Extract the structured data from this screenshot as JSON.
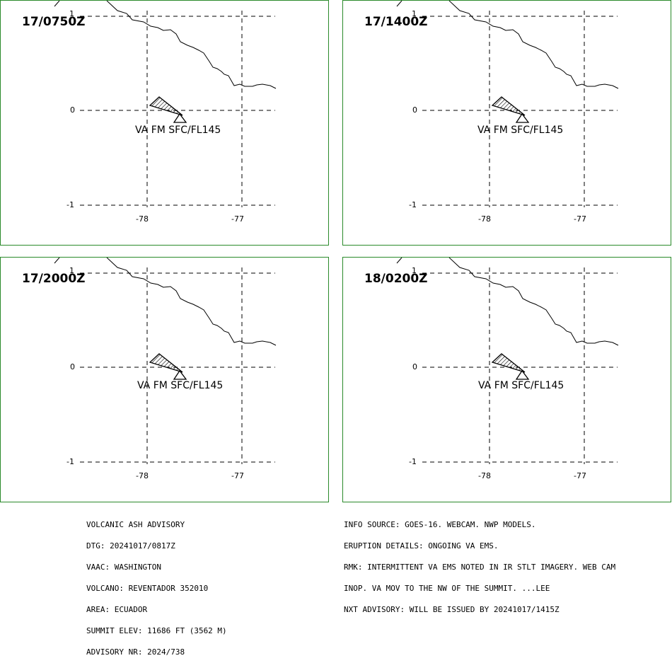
{
  "panels": [
    {
      "time": "17/0750Z",
      "label": "VA FM SFC/FL145"
    },
    {
      "time": "17/1400Z",
      "label": "VA FM SFC/FL145"
    },
    {
      "time": "17/2000Z",
      "label": "VA FM SFC/FL145"
    },
    {
      "time": "18/0200Z",
      "label": "VA FM SFC/FL145"
    }
  ],
  "axes": {
    "lat_ticks": [
      "1",
      "0",
      "-1"
    ],
    "lon_ticks": [
      "-78",
      "-77"
    ]
  },
  "advisory_left": [
    "VOLCANIC ASH ADVISORY",
    "DTG: 20241017/0817Z",
    "VAAC: WASHINGTON",
    "VOLCANO: REVENTADOR 352010",
    "AREA: ECUADOR",
    "SUMMIT ELEV: 11686 FT (3562 M)",
    "ADVISORY NR: 2024/738"
  ],
  "advisory_right": [
    "INFO SOURCE: GOES-16. WEBCAM. NWP MODELS.",
    "ERUPTION DETAILS: ONGOING VA EMS.",
    "RMK: INTERMITTENT VA EMS NOTED IN IR STLT IMAGERY. WEB CAM",
    "INOP. VA MOV TO THE NW OF THE SUMMIT. ...LEE",
    "NXT ADVISORY: WILL BE ISSUED BY 20241017/1415Z"
  ],
  "colors": {
    "border": "#2a8a2a",
    "lines": "#000000"
  }
}
